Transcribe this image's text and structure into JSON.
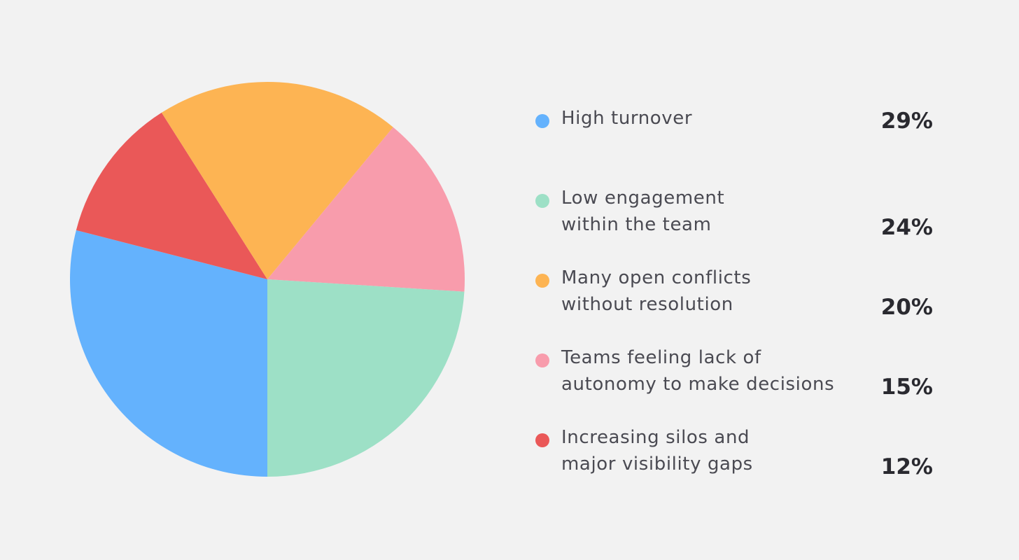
{
  "chart_data": {
    "type": "pie",
    "categories": [
      "High turnover",
      "Low engagement\nwithin the team",
      "Many open conflicts\nwithout resolution",
      "Teams feeling lack of\nautonomy to make decisions",
      "Increasing silos and\nmajor visibility gaps"
    ],
    "values": [
      29,
      24,
      20,
      15,
      12
    ],
    "value_labels": [
      "29%",
      "24%",
      "20%",
      "15%",
      "12%"
    ],
    "colors": [
      "#64b2fd",
      "#9de0c6",
      "#fdb453",
      "#f89cac",
      "#ea5858"
    ],
    "legend_position": "right"
  }
}
